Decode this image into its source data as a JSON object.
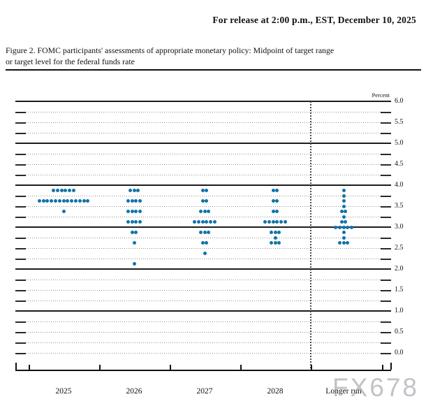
{
  "header": {
    "release_line": "For release at 2:00 p.m., EST, December 10, 2025"
  },
  "figure": {
    "caption_line1": "Figure 2. FOMC participants' assessments of appropriate monetary policy: Midpoint of target range",
    "caption_line2": "or target level for the federal funds rate"
  },
  "watermark": "FX678",
  "chart_data": {
    "type": "scatter",
    "title": "FOMC dot plot: midpoint of target range or target level for the federal funds rate",
    "ylabel": "Percent",
    "ylim": [
      0.0,
      6.0
    ],
    "yticks": [
      6.0,
      5.5,
      5.0,
      4.5,
      4.0,
      3.5,
      3.0,
      2.5,
      2.0,
      1.5,
      1.0,
      0.5,
      0.0
    ],
    "gridlines": {
      "dotted_interval": 0.25,
      "solid_at_integers": true,
      "separator_dotted_vertical_before": "Longer run"
    },
    "legend": "none",
    "categories": [
      "2025",
      "2026",
      "2027",
      "2028",
      "Longer run"
    ],
    "dot_color": "#1273a8",
    "series": [
      {
        "category": "2025",
        "dots": [
          {
            "rate": 3.875,
            "count": 6
          },
          {
            "rate": 3.625,
            "count": 13
          },
          {
            "rate": 3.375,
            "count": 1
          }
        ]
      },
      {
        "category": "2026",
        "dots": [
          {
            "rate": 3.875,
            "count": 3
          },
          {
            "rate": 3.625,
            "count": 4
          },
          {
            "rate": 3.375,
            "count": 4
          },
          {
            "rate": 3.125,
            "count": 4
          },
          {
            "rate": 2.875,
            "count": 2
          },
          {
            "rate": 2.625,
            "count": 1
          },
          {
            "rate": 2.125,
            "count": 1
          }
        ]
      },
      {
        "category": "2027",
        "dots": [
          {
            "rate": 3.875,
            "count": 2
          },
          {
            "rate": 3.625,
            "count": 2
          },
          {
            "rate": 3.375,
            "count": 3
          },
          {
            "rate": 3.125,
            "count": 6
          },
          {
            "rate": 2.875,
            "count": 3
          },
          {
            "rate": 2.625,
            "count": 2
          },
          {
            "rate": 2.375,
            "count": 1
          }
        ]
      },
      {
        "category": "2028",
        "dots": [
          {
            "rate": 3.875,
            "count": 2
          },
          {
            "rate": 3.625,
            "count": 2
          },
          {
            "rate": 3.375,
            "count": 2
          },
          {
            "rate": 3.125,
            "count": 6
          },
          {
            "rate": 2.875,
            "count": 3
          },
          {
            "rate": 2.75,
            "count": 1
          },
          {
            "rate": 2.625,
            "count": 3
          }
        ]
      },
      {
        "category": "Longer run",
        "dots": [
          {
            "rate": 3.875,
            "count": 1
          },
          {
            "rate": 3.75,
            "count": 1
          },
          {
            "rate": 3.625,
            "count": 1
          },
          {
            "rate": 3.5,
            "count": 1
          },
          {
            "rate": 3.375,
            "count": 2
          },
          {
            "rate": 3.25,
            "count": 1
          },
          {
            "rate": 3.125,
            "count": 2
          },
          {
            "rate": 3.0,
            "count": 5
          },
          {
            "rate": 2.875,
            "count": 1
          },
          {
            "rate": 2.75,
            "count": 1
          },
          {
            "rate": 2.625,
            "count": 3
          }
        ]
      }
    ]
  }
}
